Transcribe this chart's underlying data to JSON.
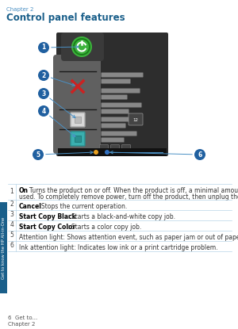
{
  "page_header": "Chapter 2",
  "title": "Control panel features",
  "bg_color": "#ffffff",
  "header_color": "#4a90c4",
  "title_color": "#1a5f8a",
  "panel_bg": "#2d2d2d",
  "panel_left_bg": "#606060",
  "table_rows": [
    {
      "num": "1",
      "bold_text": "On",
      "rest_text": ": Turns the product on or off. When the product is off, a minimal amount of power is still",
      "rest_text2": "used. To completely remove power, turn off the product, then unplug the power cord."
    },
    {
      "num": "2",
      "bold_text": "Cancel",
      "rest_text": ": Stops the current operation.",
      "rest_text2": ""
    },
    {
      "num": "3",
      "bold_text": "Start Copy Black",
      "rest_text": ": Starts a black-and-white copy job.",
      "rest_text2": ""
    },
    {
      "num": "4",
      "bold_text": "Start Copy Color",
      "rest_text": ": Starts a color copy job.",
      "rest_text2": ""
    },
    {
      "num": "5",
      "bold_text": "",
      "rest_text": "Attention light: Shows attention event, such as paper jam or out of paper.",
      "rest_text2": ""
    },
    {
      "num": "6",
      "bold_text": "",
      "rest_text": "Ink attention light: Indicates low ink or a print cartridge problem.",
      "rest_text2": ""
    }
  ],
  "sidebar_text": "Get to know the HP All-in-One",
  "sidebar_color": "#1a5f8a",
  "callout_color": "#4a90c4",
  "callout_bg": "#2060a0",
  "power_btn_color": "#3db33d",
  "cancel_color": "#cc2222",
  "copy_bw_color": "#cccccc",
  "copy_color_color": "#3aafaf",
  "line_color": "#b8d4e8",
  "bar_color": "#888888",
  "bar_color2": "#aaaaaa"
}
